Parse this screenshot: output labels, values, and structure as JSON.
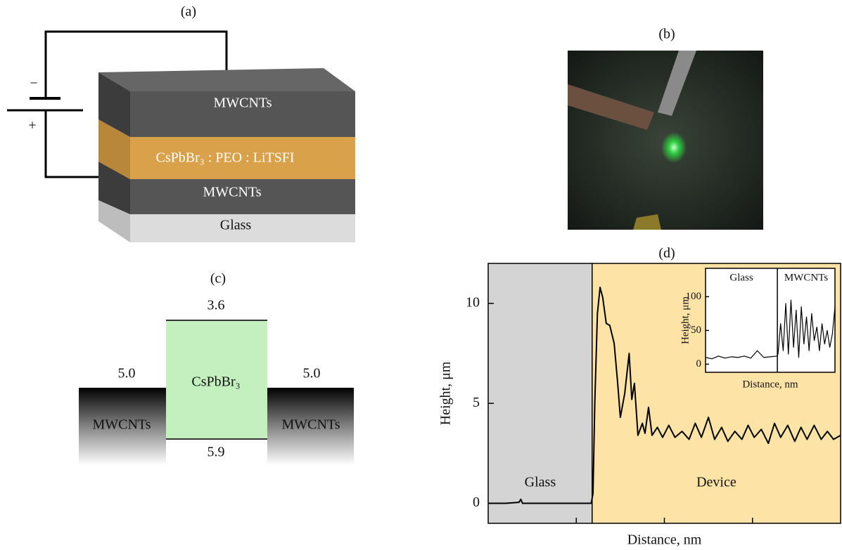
{
  "panel_a": {
    "label": "(a)",
    "layers": [
      "MWCNTs",
      "CsPbBr₃ : PEO : LiTSFI",
      "MWCNTs",
      "Glass"
    ],
    "battery": {
      "minus": "−",
      "plus": "+"
    }
  },
  "panel_b": {
    "label": "(b)"
  },
  "panel_c": {
    "label": "(c)",
    "material": "CsPbBr₃",
    "electrodes": [
      "MWCNTs",
      "MWCNTs"
    ],
    "levels": {
      "top": "3.6",
      "bottom": "5.9",
      "left": "5.0",
      "right": "5.0"
    }
  },
  "chart_data": [
    {
      "type": "line",
      "title": "(d)",
      "x_label": "Distance, nm",
      "y_label": "Height, μm",
      "xlim": [
        0,
        4
      ],
      "ylim": [
        -1,
        12
      ],
      "xticks": [
        1,
        2,
        3
      ],
      "yticks": [
        0,
        5,
        10
      ],
      "regions": [
        {
          "name": "Glass",
          "color": "#d4d4d4",
          "x": [
            0,
            1.18
          ]
        },
        {
          "name": "Device",
          "color": "#fde4a6",
          "x": [
            1.18,
            4
          ]
        }
      ],
      "series": [
        {
          "color": "#000000",
          "x": [
            0,
            0.2,
            0.35,
            0.37,
            0.39,
            0.6,
            0.9,
            1.17,
            1.19,
            1.21,
            1.24,
            1.27,
            1.3,
            1.34,
            1.38,
            1.43,
            1.47,
            1.5,
            1.55,
            1.6,
            1.63,
            1.66,
            1.7,
            1.75,
            1.78,
            1.82,
            1.86,
            1.92,
            1.98,
            2.05,
            2.12,
            2.2,
            2.28,
            2.35,
            2.42,
            2.5,
            2.57,
            2.65,
            2.72,
            2.8,
            2.88,
            2.95,
            3.02,
            3.1,
            3.18,
            3.25,
            3.32,
            3.4,
            3.48,
            3.55,
            3.62,
            3.7,
            3.78,
            3.85,
            3.92,
            4
          ],
          "values": [
            0,
            0,
            0.05,
            0.2,
            0,
            0,
            0,
            0,
            0.5,
            5,
            9.5,
            10.8,
            10.3,
            9.0,
            8.9,
            8.0,
            6.0,
            4.3,
            5.5,
            7.5,
            5.2,
            6.0,
            3.4,
            4.0,
            3.5,
            4.8,
            3.4,
            3.8,
            3.3,
            3.9,
            3.3,
            3.6,
            3.2,
            4.0,
            3.3,
            4.3,
            3.2,
            3.8,
            3.1,
            3.6,
            3.2,
            3.9,
            3.3,
            3.7,
            3.0,
            4.0,
            3.3,
            3.9,
            3.1,
            3.8,
            3.2,
            3.9,
            3.2,
            3.6,
            3.2,
            3.4
          ]
        }
      ]
    },
    {
      "type": "line",
      "x_label": "Distance, nm",
      "y_label": "Height, μm",
      "xlim": [
        0,
        1
      ],
      "ylim": [
        -12,
        142
      ],
      "yticks": [
        0,
        50,
        100
      ],
      "regions": [
        {
          "name": "Glass",
          "color": "#ffffff",
          "x": [
            0,
            0.555
          ]
        },
        {
          "name": "MWCNTs",
          "color": "#ffffff",
          "x": [
            0.555,
            1
          ]
        }
      ],
      "series": [
        {
          "color": "#000000",
          "x": [
            0,
            0.05,
            0.1,
            0.15,
            0.2,
            0.25,
            0.3,
            0.35,
            0.4,
            0.45,
            0.5,
            0.55,
            0.56,
            0.58,
            0.6,
            0.62,
            0.64,
            0.66,
            0.68,
            0.7,
            0.72,
            0.74,
            0.76,
            0.78,
            0.8,
            0.82,
            0.84,
            0.86,
            0.88,
            0.9,
            0.92,
            0.94,
            0.96,
            0.98,
            1
          ],
          "values": [
            10,
            8,
            12,
            9,
            11,
            10,
            12,
            9,
            20,
            10,
            11,
            12,
            15,
            60,
            20,
            90,
            15,
            95,
            25,
            80,
            10,
            85,
            30,
            70,
            20,
            75,
            35,
            55,
            20,
            60,
            30,
            50,
            25,
            45,
            85
          ]
        }
      ]
    }
  ]
}
